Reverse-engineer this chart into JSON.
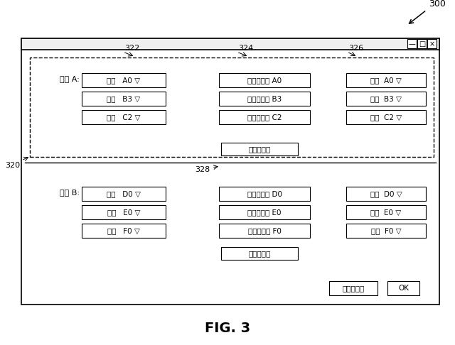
{
  "fig_label": "FIG. 3",
  "ref_300": "300",
  "ref_320": "320",
  "ref_322": "322",
  "ref_324": "324",
  "ref_326": "326",
  "ref_328": "328",
  "title_bar_buttons": [
    "—",
    "□",
    "×"
  ],
  "label_protA": "保護 A:",
  "label_protB": "保護 B:",
  "col1_rows_A": [
    "閾値   A0 ▽",
    "閾値   B3 ▽",
    "閾値   C2 ▽"
  ],
  "col2_rows_A": [
    "メッセージ A0",
    "メッセージ B3",
    "メッセージ C2"
  ],
  "col3_rows_A": [
    "動作  A0 ▽",
    "動作  B3 ▽",
    "動作  C2 ▽"
  ],
  "col1_rows_B": [
    "閾値   D0 ▽",
    "閾値   E0 ▽",
    "閾値   F0 ▽"
  ],
  "col2_rows_B": [
    "メッセージ D0",
    "メッセージ E0",
    "メッセージ F0"
  ],
  "col3_rows_B": [
    "動作  D0 ▽",
    "動作  E0 ▽",
    "動作  F0 ▽"
  ],
  "log_btn": "ログを見る",
  "cancel_btn": "キャンセル",
  "ok_btn": "OK",
  "bg_color": "#ffffff",
  "box_color": "#000000",
  "text_color": "#000000",
  "font_size": 7.5,
  "font_size_ref": 8,
  "font_size_title": 14
}
